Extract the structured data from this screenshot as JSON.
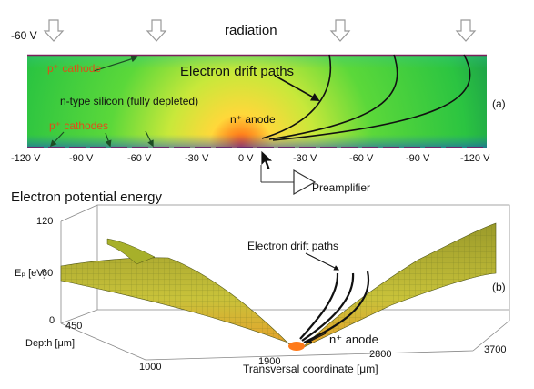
{
  "top": {
    "radiation_label": "radiation",
    "left_voltage": "-60 V"
  },
  "panel_a": {
    "tag": "(a)",
    "p_cathode": "p⁺ cathode",
    "n_type": "n-type silicon (fully depleted)",
    "p_cathodes": "p⁺ cathodes",
    "drift_paths": "Electron drift paths",
    "n_anode": "n⁺ anode",
    "preamp": "Preamplifier",
    "voltages": [
      "-120 V",
      "-90 V",
      "-60 V",
      "-30 V",
      "0 V",
      "-30 V",
      "-60 V",
      "-90 V",
      "-120 V"
    ]
  },
  "panel_b": {
    "title": "Electron potential energy",
    "tag": "(b)",
    "z_axis_label": "Eₚ [eV]",
    "z_ticks": [
      "120",
      "60",
      "0"
    ],
    "depth_label": "Depth [μm]",
    "depth_tick": "450",
    "x_label": "Transversal coordinate [μm]",
    "x_ticks": [
      "1000",
      "1900",
      "2800",
      "3700"
    ],
    "drift_paths": "Electron drift paths",
    "n_anode": "n⁺ anode"
  },
  "colors": {
    "field_edge": "#1f9e3a",
    "field_mid": "#3fd13a",
    "field_center": "#f2e23a",
    "anode": "#ff4a1a",
    "surface": "#b8c12a"
  }
}
